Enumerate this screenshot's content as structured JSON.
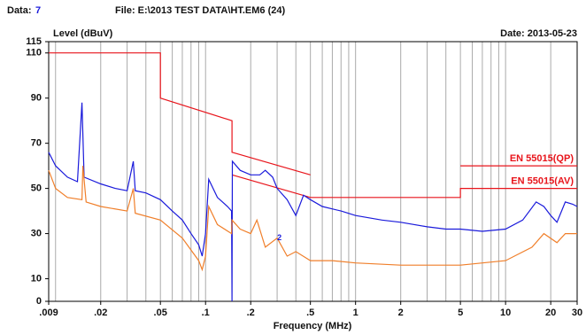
{
  "chart_data": {
    "type": "line",
    "header": {
      "data_label": "Data:",
      "data_value": "7",
      "file": "File: E:\\2013 TEST DATA\\HT.EM6  (24)",
      "date": "Date: 2013-05-23"
    },
    "ylabel": "Level (dBuV)",
    "xlabel": "Frequency (MHz)",
    "xscale": "log",
    "xlim": [
      0.009,
      30
    ],
    "ylim": [
      0,
      115
    ],
    "xticks": [
      {
        "value": 0.009,
        "label": ".009"
      },
      {
        "value": 0.02,
        "label": ".02"
      },
      {
        "value": 0.05,
        "label": ".05"
      },
      {
        "value": 0.1,
        "label": ".1"
      },
      {
        "value": 0.2,
        "label": ".2"
      },
      {
        "value": 0.5,
        "label": ".5"
      },
      1,
      2,
      5,
      10,
      20,
      30
    ],
    "yticks": [
      0,
      10,
      30,
      50,
      70,
      90,
      110,
      115
    ],
    "xgrid": [
      0.01,
      0.02,
      0.03,
      0.04,
      0.05,
      0.06,
      0.07,
      0.08,
      0.09,
      0.1,
      0.2,
      0.3,
      0.4,
      0.5,
      0.6,
      0.7,
      0.8,
      0.9,
      1,
      2,
      3,
      4,
      5,
      6,
      7,
      8,
      9,
      10,
      20
    ],
    "series": [
      {
        "name": "EN 55015(QP)",
        "color": "#e8141b",
        "x": [
          0.009,
          0.05,
          0.05,
          0.15,
          0.15,
          0.5,
          null,
          5,
          30
        ],
        "values": [
          110,
          110,
          90,
          80,
          66,
          56,
          null,
          60,
          60
        ]
      },
      {
        "name": "EN 55015(AV)",
        "color": "#e8141b",
        "x": [
          0.15,
          0.5,
          5,
          5,
          30
        ],
        "values": [
          56,
          46,
          46,
          50,
          50
        ]
      },
      {
        "color": "#1a1adb",
        "x": [
          0.009,
          0.01,
          0.012,
          0.014,
          0.015,
          0.0155,
          0.02,
          0.025,
          0.03,
          0.033,
          0.034,
          0.04,
          0.05,
          0.06,
          0.07,
          0.08,
          0.09,
          0.095,
          0.1,
          0.105,
          0.12,
          0.14,
          0.149,
          0.15,
          0.151,
          0.17,
          0.2,
          0.23,
          0.25,
          0.28,
          0.3,
          0.35,
          0.4,
          0.45,
          0.5,
          0.6,
          0.8,
          1,
          1.5,
          2,
          3,
          4,
          5,
          7,
          10,
          13,
          16,
          18,
          20,
          22,
          25,
          28,
          30
        ],
        "values": [
          66,
          60,
          55,
          53,
          88,
          55,
          52,
          50,
          49,
          62,
          49,
          48,
          45,
          40,
          36,
          30,
          25,
          20,
          30,
          54,
          46,
          42,
          40,
          0,
          62,
          58,
          56,
          56,
          58,
          55,
          50,
          45,
          38,
          47,
          45,
          42,
          40,
          38,
          36,
          35,
          33,
          32,
          32,
          31,
          32,
          36,
          44,
          42,
          38,
          35,
          44,
          43,
          42
        ]
      },
      {
        "color": "#f07f2a",
        "x": [
          0.009,
          0.01,
          0.012,
          0.015,
          0.0152,
          0.016,
          0.02,
          0.03,
          0.033,
          0.034,
          0.05,
          0.07,
          0.09,
          0.095,
          0.1,
          0.105,
          0.12,
          0.149,
          0.15,
          0.17,
          0.2,
          0.22,
          0.25,
          0.3,
          0.35,
          0.4,
          0.5,
          0.7,
          1,
          2,
          5,
          10,
          15,
          18,
          22,
          25,
          30
        ],
        "values": [
          58,
          50,
          46,
          45,
          60,
          44,
          42,
          40,
          50,
          39,
          36,
          28,
          18,
          14,
          20,
          42,
          34,
          30,
          36,
          32,
          30,
          36,
          24,
          28,
          20,
          22,
          18,
          18,
          17,
          16,
          16,
          18,
          24,
          30,
          26,
          30,
          30
        ]
      }
    ],
    "marker": {
      "label": "2",
      "x": 0.3,
      "y": 28,
      "color": "#1a1adb"
    }
  }
}
